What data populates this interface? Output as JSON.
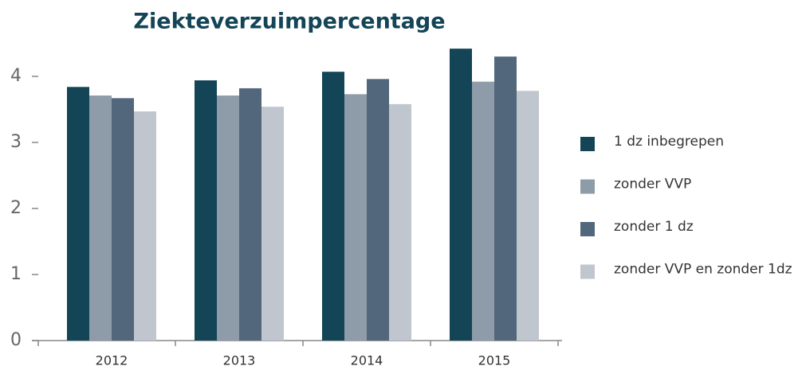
{
  "chart_data": {
    "type": "bar",
    "title": "Ziekteverzuimpercentage",
    "categories": [
      "2012",
      "2013",
      "2014",
      "2015"
    ],
    "series": [
      {
        "name": "1 dz inbegrepen",
        "color": "#134557",
        "values": [
          3.84,
          3.94,
          4.07,
          4.42
        ]
      },
      {
        "name": "zonder VVP",
        "color": "#8e9ba8",
        "values": [
          3.71,
          3.71,
          3.73,
          3.92
        ]
      },
      {
        "name": "zonder 1 dz",
        "color": "#52677b",
        "values": [
          3.67,
          3.82,
          3.96,
          4.3
        ]
      },
      {
        "name": "zonder VVP en zonder 1dz",
        "color": "#c0c6ce",
        "values": [
          3.47,
          3.54,
          3.58,
          3.78
        ]
      }
    ],
    "ylim": [
      0,
      4.5
    ],
    "yticks": [
      0,
      1,
      2,
      3,
      4
    ],
    "grid": false,
    "legend": "right"
  }
}
